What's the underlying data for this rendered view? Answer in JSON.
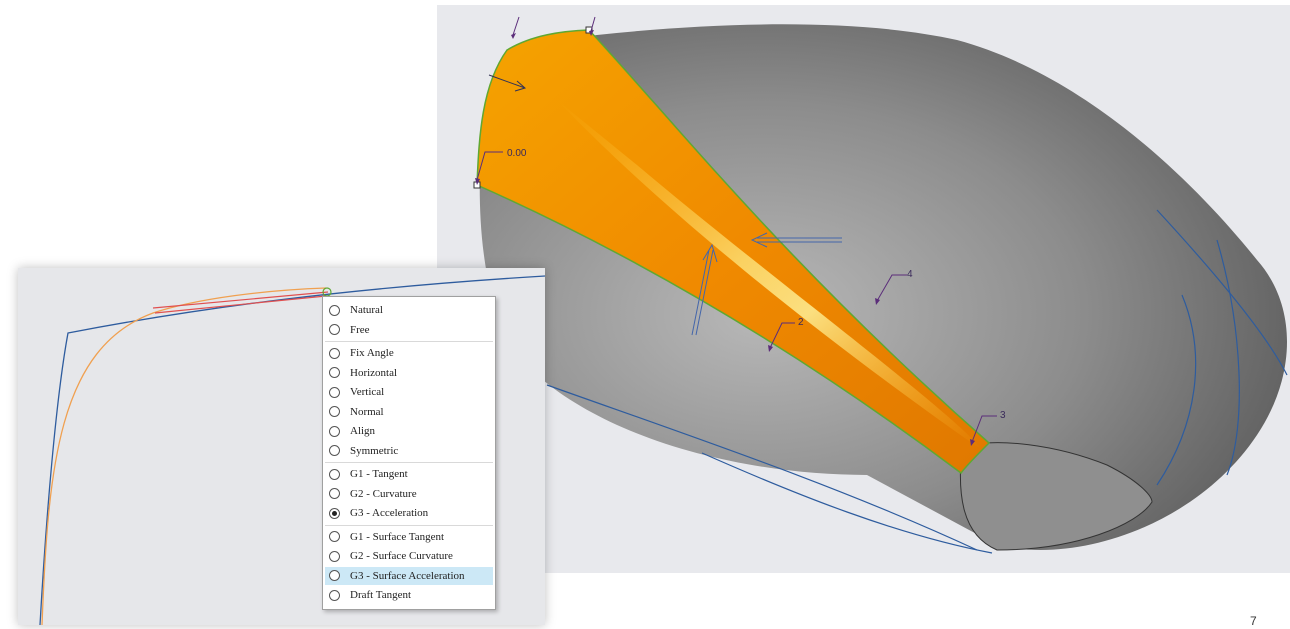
{
  "viewport": {
    "labels": [
      "0.00",
      "4",
      "2",
      "3"
    ],
    "colors": {
      "background": "#e8e9ed",
      "body_gray": "#8a8a8a",
      "surface_orange": "#f39c00",
      "edge_green": "#5fa832",
      "curve_blue": "#2e5c9e",
      "annotation_purple": "#5b2d7a"
    }
  },
  "menu": {
    "groups": [
      [
        {
          "label": "Natural",
          "selected": false
        },
        {
          "label": "Free",
          "selected": false
        }
      ],
      [
        {
          "label": "Fix Angle",
          "selected": false
        },
        {
          "label": "Horizontal",
          "selected": false
        },
        {
          "label": "Vertical",
          "selected": false
        },
        {
          "label": "Normal",
          "selected": false
        },
        {
          "label": "Align",
          "selected": false
        },
        {
          "label": "Symmetric",
          "selected": false
        }
      ],
      [
        {
          "label": "G1 - Tangent",
          "selected": false
        },
        {
          "label": "G2 - Curvature",
          "selected": false
        },
        {
          "label": "G3 - Acceleration",
          "selected": true
        }
      ],
      [
        {
          "label": "G1 - Surface Tangent",
          "selected": false
        },
        {
          "label": "G2 - Surface Curvature",
          "selected": false
        },
        {
          "label": "G3 - Surface Acceleration",
          "selected": false,
          "highlighted": true
        },
        {
          "label": "Draft Tangent",
          "selected": false
        }
      ]
    ]
  },
  "page_number": "7"
}
